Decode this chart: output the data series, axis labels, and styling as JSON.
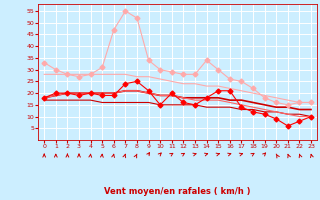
{
  "x": [
    0,
    1,
    2,
    3,
    4,
    5,
    6,
    7,
    8,
    9,
    10,
    11,
    12,
    13,
    14,
    15,
    16,
    17,
    18,
    19,
    20,
    21,
    22,
    23
  ],
  "series": [
    {
      "values": [
        33,
        30,
        28,
        27,
        28,
        31,
        47,
        55,
        52,
        34,
        30,
        29,
        28,
        28,
        34,
        30,
        26,
        25,
        22,
        18,
        16,
        15,
        16,
        16
      ],
      "color": "#ffaaaa",
      "marker": "D",
      "lw": 0.8,
      "ms": 2.5
    },
    {
      "values": [
        18,
        20,
        20,
        19,
        20,
        19,
        19,
        24,
        25,
        21,
        15,
        20,
        16,
        15,
        18,
        21,
        21,
        14,
        12,
        11,
        9,
        6,
        8,
        10
      ],
      "color": "#ff0000",
      "marker": "D",
      "lw": 0.8,
      "ms": 2.5
    },
    {
      "values": [
        18,
        19,
        20,
        20,
        20,
        20,
        20,
        21,
        21,
        20,
        19,
        19,
        18,
        18,
        18,
        18,
        17,
        17,
        16,
        15,
        14,
        14,
        13,
        13
      ],
      "color": "#cc0000",
      "marker": null,
      "lw": 1.2,
      "ms": 0
    },
    {
      "values": [
        17,
        17,
        17,
        17,
        17,
        16,
        16,
        16,
        16,
        16,
        15,
        15,
        15,
        15,
        14,
        14,
        14,
        13,
        13,
        12,
        12,
        11,
        11,
        10
      ],
      "color": "#cc0000",
      "marker": null,
      "lw": 0.8,
      "ms": 0
    },
    {
      "values": [
        18,
        19,
        20,
        20,
        20,
        20,
        20,
        21,
        21,
        20,
        19,
        19,
        18,
        17,
        17,
        17,
        16,
        15,
        14,
        13,
        12,
        11,
        10,
        10
      ],
      "color": "#ff6666",
      "marker": null,
      "lw": 0.8,
      "ms": 0
    },
    {
      "values": [
        28,
        28,
        28,
        28,
        28,
        28,
        28,
        28,
        27,
        27,
        26,
        25,
        24,
        24,
        23,
        23,
        22,
        21,
        20,
        19,
        18,
        17,
        16,
        16
      ],
      "color": "#ffaaaa",
      "marker": null,
      "lw": 0.8,
      "ms": 0
    }
  ],
  "arrow_angles": [
    90,
    90,
    90,
    90,
    80,
    80,
    70,
    60,
    50,
    40,
    30,
    20,
    20,
    10,
    10,
    10,
    10,
    10,
    20,
    30,
    135,
    125,
    120,
    115
  ],
  "xlabel": "Vent moyen/en rafales ( km/h )",
  "ylim": [
    0,
    58
  ],
  "yticks": [
    5,
    10,
    15,
    20,
    25,
    30,
    35,
    40,
    45,
    50,
    55
  ],
  "xlim": [
    -0.5,
    23.5
  ],
  "xticks": [
    0,
    1,
    2,
    3,
    4,
    5,
    6,
    7,
    8,
    9,
    10,
    11,
    12,
    13,
    14,
    15,
    16,
    17,
    18,
    19,
    20,
    21,
    22,
    23
  ],
  "bg_color": "#cceeff",
  "grid_color": "#ffffff",
  "xlabel_color": "#cc0000",
  "tick_color": "#cc0000",
  "arrow_color": "#cc0000"
}
